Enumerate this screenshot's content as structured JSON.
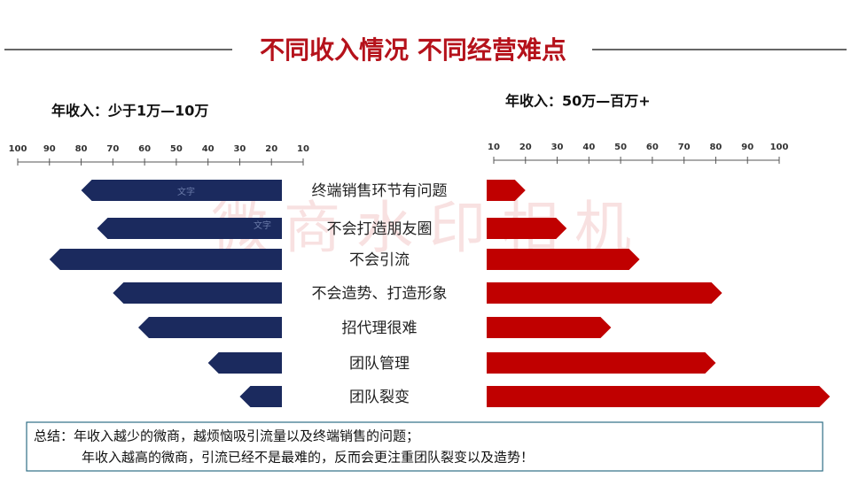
{
  "title": "不同收入情况 不同经营难点",
  "chart_data": {
    "type": "butterfly",
    "categories": [
      "终端销售环节有问题",
      "不会打造朋友圈",
      "不会引流",
      "不会造势、打造形象",
      "招代理很难",
      "团队管理",
      "团队裂变"
    ],
    "series": [
      {
        "name": "年收入：少于1万—10万",
        "color": "#1b2a5e",
        "values": [
          80,
          75,
          90,
          70,
          62,
          40,
          30
        ],
        "xlim": [
          100,
          10
        ],
        "xticks": [
          100,
          90,
          80,
          70,
          60,
          50,
          40,
          30,
          20,
          10
        ]
      },
      {
        "name": "年收入：50万—百万+",
        "color": "#c00000",
        "values": [
          20,
          33,
          56,
          82,
          47,
          80,
          116
        ],
        "xlim": [
          10,
          100
        ],
        "xticks": [
          10,
          20,
          30,
          40,
          50,
          60,
          70,
          80,
          90,
          100
        ]
      }
    ],
    "annotations": [
      "文字",
      "文字"
    ]
  },
  "watermark": "微商水印相机",
  "summary": [
    "总结：年收入越少的微商，越烦恼吸引流量以及终端销售的问题；",
    "年收入越高的微商，引流已经不是最难的，反而会更注重团队裂变以及造势！"
  ]
}
